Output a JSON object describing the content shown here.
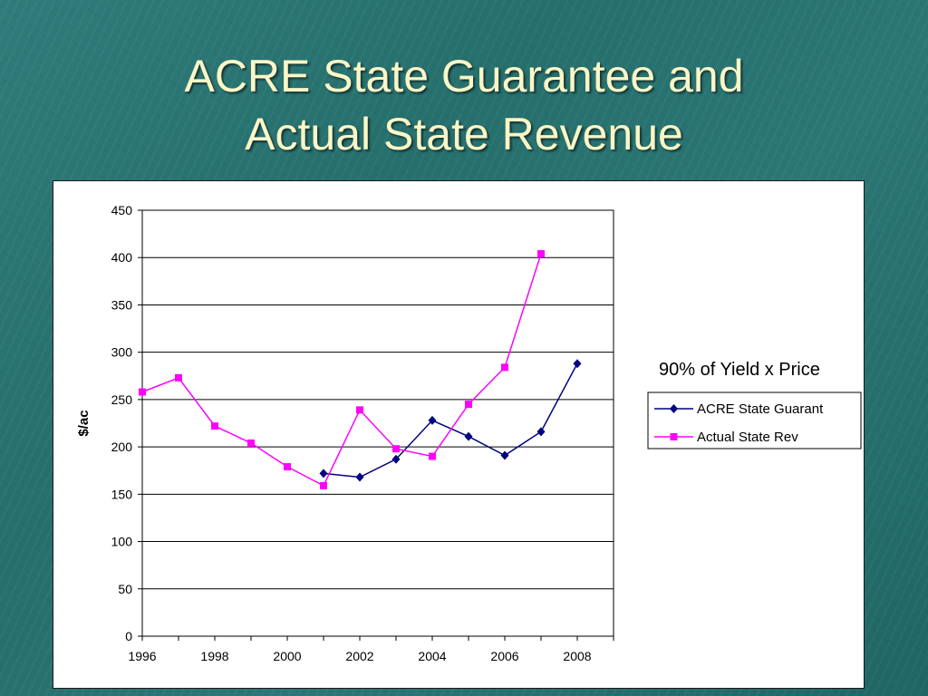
{
  "slide": {
    "title_line1": "ACRE State Guarantee and",
    "title_line2": "Actual State Revenue",
    "title_color": "#fbf6c6",
    "background_color": "#2a7573"
  },
  "chart_data": {
    "type": "line",
    "title": "",
    "subtitle": "90% of Yield x Price",
    "xlabel": "",
    "ylabel": "$/ac",
    "xlim": [
      1996,
      2009
    ],
    "ylim": [
      0,
      450
    ],
    "x_ticks": [
      "1996",
      "1998",
      "2000",
      "2002",
      "2004",
      "2006",
      "2008"
    ],
    "y_ticks": [
      "0",
      "50",
      "100",
      "150",
      "200",
      "250",
      "300",
      "350",
      "400",
      "450"
    ],
    "grid": "horizontal",
    "legend_position": "right",
    "series": [
      {
        "name": "ACRE State Guarant",
        "color": "#000080",
        "marker": "diamond",
        "x": [
          2001,
          2002,
          2003,
          2004,
          2005,
          2006,
          2007,
          2008
        ],
        "y": [
          172,
          168,
          187,
          228,
          211,
          191,
          216,
          288
        ]
      },
      {
        "name": "Actual State Rev",
        "color": "#ff00ff",
        "marker": "square",
        "x": [
          1996,
          1997,
          1998,
          1999,
          2000,
          2001,
          2002,
          2003,
          2004,
          2005,
          2006,
          2007
        ],
        "y": [
          258,
          273,
          222,
          204,
          179,
          159,
          239,
          198,
          190,
          245,
          284,
          404
        ]
      }
    ]
  }
}
